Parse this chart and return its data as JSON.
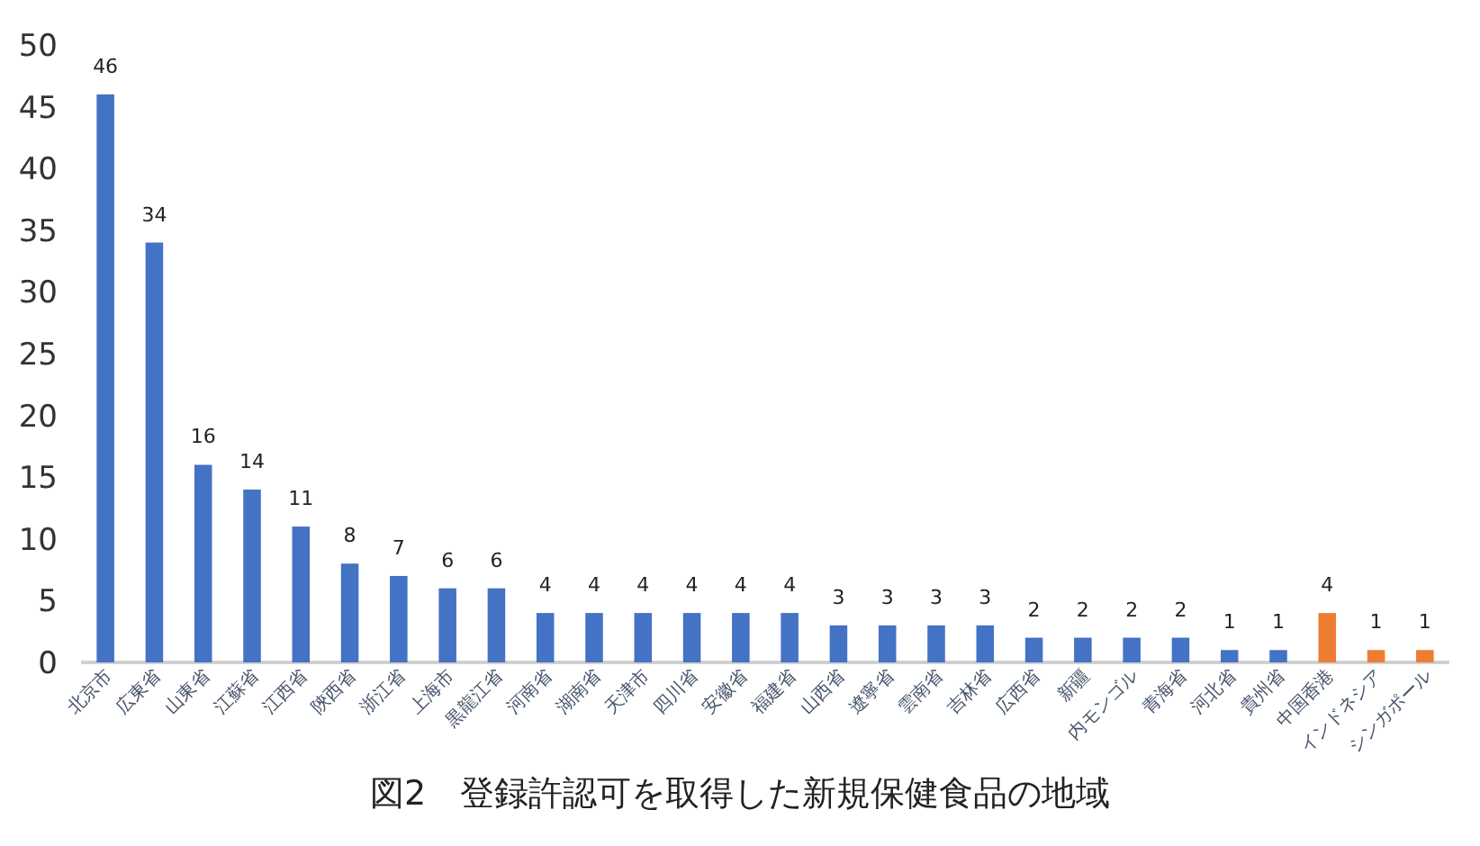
{
  "chart_data": {
    "type": "bar",
    "title": "図2　登録許認可を取得した新規保健食品の地域",
    "categories": [
      "北京市",
      "広東省",
      "山東省",
      "江蘇省",
      "江西省",
      "陝西省",
      "浙江省",
      "上海市",
      "黒龍江省",
      "河南省",
      "湖南省",
      "天津市",
      "四川省",
      "安徽省",
      "福建省",
      "山西省",
      "遼寧省",
      "雲南省",
      "吉林省",
      "広西省",
      "新疆",
      "内モンゴル",
      "青海省",
      "河北省",
      "貴州省",
      "中国香港",
      "インドネシア",
      "シンガポール"
    ],
    "values": [
      46,
      34,
      16,
      14,
      11,
      8,
      7,
      6,
      6,
      4,
      4,
      4,
      4,
      4,
      4,
      3,
      3,
      3,
      3,
      2,
      2,
      2,
      2,
      1,
      1,
      4,
      1,
      1
    ],
    "colors": [
      "#4472c4",
      "#4472c4",
      "#4472c4",
      "#4472c4",
      "#4472c4",
      "#4472c4",
      "#4472c4",
      "#4472c4",
      "#4472c4",
      "#4472c4",
      "#4472c4",
      "#4472c4",
      "#4472c4",
      "#4472c4",
      "#4472c4",
      "#4472c4",
      "#4472c4",
      "#4472c4",
      "#4472c4",
      "#4472c4",
      "#4472c4",
      "#4472c4",
      "#4472c4",
      "#4472c4",
      "#4472c4",
      "#ed7d31",
      "#ed7d31",
      "#ed7d31"
    ],
    "ylim": [
      0,
      50
    ],
    "yticks": [
      0,
      5,
      10,
      15,
      20,
      25,
      30,
      35,
      40,
      45,
      50
    ],
    "data_labels": true,
    "grid": false
  }
}
